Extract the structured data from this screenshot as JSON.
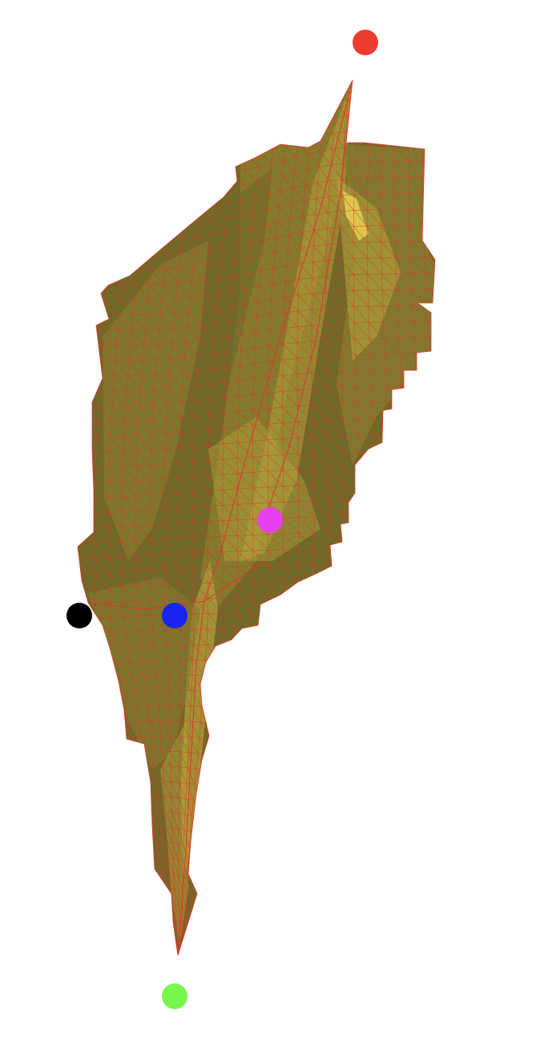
{
  "scene": {
    "background": "#ffffff",
    "surface": {
      "fill_dark": "#6e6a28",
      "fill_mid": "#857d2e",
      "fill_light": "#b3a33c",
      "highlight": "#e8cf4f",
      "wireframe_color": "#e0342a"
    },
    "markers": [
      {
        "name": "red-marker",
        "color": "#ee3b30"
      },
      {
        "name": "magenta-marker",
        "color": "#e840ee"
      },
      {
        "name": "black-marker",
        "color": "#000000"
      },
      {
        "name": "blue-marker",
        "color": "#1a24f0"
      },
      {
        "name": "green-marker",
        "color": "#77f74c"
      }
    ]
  }
}
